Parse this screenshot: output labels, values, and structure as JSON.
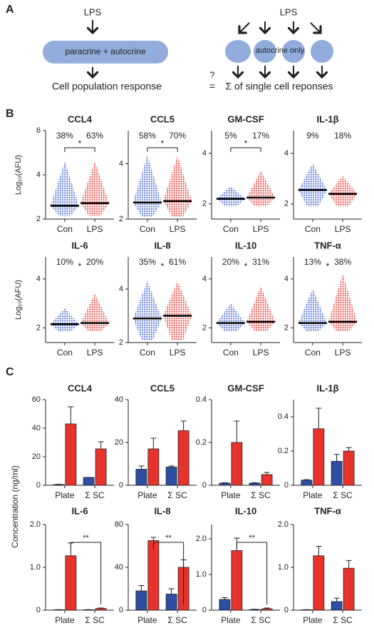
{
  "panel_labels": [
    "A",
    "B",
    "C"
  ],
  "diagram": {
    "left_stimulus": "LPS",
    "left_box": "paracrine + autocrine",
    "left_result": "Cell population response",
    "question": "?",
    "equals": "=",
    "right_stimulus": "LPS",
    "right_box": "autocrine only",
    "right_result": "Σ of single cell reponses"
  },
  "c_ylabel": "Concentration (ng/ml)",
  "chart_data": [
    {
      "type": "swarm",
      "title": "CCL4",
      "ylabel": "Log₁₀(AFU)",
      "categories": [
        "Con",
        "LPS"
      ],
      "colors": [
        "#3b5fcf",
        "#e8332c"
      ],
      "medians": [
        2.6,
        2.72
      ],
      "ranges": [
        [
          2.15,
          4.6
        ],
        [
          2.15,
          4.6
        ]
      ],
      "percents": [
        38,
        63
      ],
      "percent_labels": [
        "38%",
        "63%"
      ],
      "annotation": "*",
      "bracket": true,
      "ylim": [
        2,
        6
      ],
      "yticks": [
        2,
        4,
        6
      ]
    },
    {
      "type": "swarm",
      "title": "CCL5",
      "categories": [
        "Con",
        "LPS"
      ],
      "colors": [
        "#3b5fcf",
        "#e8332c"
      ],
      "medians": [
        2.6,
        2.65
      ],
      "ranges": [
        [
          2.1,
          4.3
        ],
        [
          2.1,
          4.3
        ]
      ],
      "percents": [
        58,
        70
      ],
      "percent_labels": [
        "58%",
        "70%"
      ],
      "annotation": "*",
      "bracket": true,
      "ylim": [
        2,
        5.2
      ],
      "yticks": [
        2,
        4
      ]
    },
    {
      "type": "swarm",
      "title": "GM-CSF",
      "categories": [
        "Con",
        "LPS"
      ],
      "colors": [
        "#3b5fcf",
        "#e8332c"
      ],
      "medians": [
        2.2,
        2.25
      ],
      "ranges": [
        [
          1.9,
          2.7
        ],
        [
          1.9,
          3.3
        ]
      ],
      "percents": [
        5,
        17
      ],
      "percent_labels": [
        "5%",
        "17%"
      ],
      "annotation": "*",
      "bracket": true,
      "ylim": [
        1.4,
        4.9
      ],
      "yticks": [
        2,
        4
      ]
    },
    {
      "type": "swarm",
      "title": "IL-1β",
      "categories": [
        "Con",
        "LPS"
      ],
      "colors": [
        "#3b5fcf",
        "#e8332c"
      ],
      "medians": [
        2.55,
        2.4
      ],
      "ranges": [
        [
          1.9,
          3.6
        ],
        [
          1.9,
          3.1
        ]
      ],
      "percents": [
        9,
        18
      ],
      "percent_labels": [
        "9%",
        "18%"
      ],
      "bracket": false,
      "ylim": [
        1.4,
        4.9
      ],
      "yticks": [
        2,
        4
      ]
    },
    {
      "type": "swarm",
      "title": "IL-6",
      "ylabel": "Log₁₀(AFU)",
      "categories": [
        "Con",
        "LPS"
      ],
      "colors": [
        "#3b5fcf",
        "#e8332c"
      ],
      "medians": [
        2.15,
        2.2
      ],
      "ranges": [
        [
          1.85,
          2.8
        ],
        [
          1.85,
          3.4
        ]
      ],
      "percents": [
        10,
        20
      ],
      "percent_labels": [
        "10%",
        "20%"
      ],
      "annotation": "*",
      "bracket": false,
      "ylim": [
        1.4,
        4.9
      ],
      "yticks": [
        2,
        4
      ]
    },
    {
      "type": "swarm",
      "title": "IL-8",
      "categories": [
        "Con",
        "LPS"
      ],
      "colors": [
        "#3b5fcf",
        "#e8332c"
      ],
      "medians": [
        2.9,
        3.0
      ],
      "ranges": [
        [
          2.1,
          4.3
        ],
        [
          2.1,
          4.3
        ]
      ],
      "percents": [
        35,
        61
      ],
      "percent_labels": [
        "35%",
        "61%"
      ],
      "annotation": "*",
      "bracket": false,
      "ylim": [
        2,
        5.2
      ],
      "yticks": [
        2,
        4
      ]
    },
    {
      "type": "swarm",
      "title": "IL-10",
      "categories": [
        "Con",
        "LPS"
      ],
      "colors": [
        "#3b5fcf",
        "#e8332c"
      ],
      "medians": [
        2.2,
        2.25
      ],
      "ranges": [
        [
          1.85,
          3.0
        ],
        [
          1.85,
          3.7
        ]
      ],
      "percents": [
        20,
        31
      ],
      "percent_labels": [
        "20%",
        "31%"
      ],
      "annotation": "*",
      "bracket": false,
      "ylim": [
        1.4,
        4.9
      ],
      "yticks": [
        2,
        4
      ]
    },
    {
      "type": "swarm",
      "title": "TNF-α",
      "categories": [
        "Con",
        "LPS"
      ],
      "colors": [
        "#3b5fcf",
        "#e8332c"
      ],
      "medians": [
        2.2,
        2.25
      ],
      "ranges": [
        [
          1.85,
          3.6
        ],
        [
          1.85,
          4.2
        ]
      ],
      "percents": [
        13,
        38
      ],
      "percent_labels": [
        "13%",
        "38%"
      ],
      "annotation": "*",
      "bracket": false,
      "ylim": [
        1.4,
        4.9
      ],
      "yticks": [
        2,
        4
      ]
    },
    {
      "type": "bar",
      "title": "CCL4",
      "categories": [
        "Plate",
        "Σ SC"
      ],
      "series": [
        {
          "color": "#2d4ea3",
          "values": [
            0.5,
            5.5
          ],
          "errors": [
            0.2,
            0
          ]
        },
        {
          "color": "#e8332c",
          "values": [
            43,
            25.5
          ],
          "errors": [
            12,
            5
          ]
        }
      ],
      "ylim": [
        0,
        60
      ],
      "yticks": [
        0,
        20,
        40,
        60
      ]
    },
    {
      "type": "bar",
      "title": "CCL5",
      "categories": [
        "Plate",
        "Σ SC"
      ],
      "series": [
        {
          "color": "#2d4ea3",
          "values": [
            7.5,
            8.5
          ],
          "errors": [
            1.5,
            0.5
          ]
        },
        {
          "color": "#e8332c",
          "values": [
            17,
            25.5
          ],
          "errors": [
            5,
            4.5
          ]
        }
      ],
      "ylim": [
        0,
        40
      ],
      "yticks": [
        0,
        20,
        40
      ]
    },
    {
      "type": "bar",
      "title": "GM-CSF",
      "categories": [
        "Plate",
        "Σ SC"
      ],
      "series": [
        {
          "color": "#2d4ea3",
          "values": [
            0.01,
            0.01
          ],
          "errors": [
            0.002,
            0.002
          ]
        },
        {
          "color": "#e8332c",
          "values": [
            0.2,
            0.05
          ],
          "errors": [
            0.1,
            0.01
          ]
        }
      ],
      "ylim": [
        0,
        0.4
      ],
      "yticks": [
        0,
        0.2,
        0.4
      ]
    },
    {
      "type": "bar",
      "title": "IL-1β",
      "categories": [
        "Plate",
        "Σ SC"
      ],
      "series": [
        {
          "color": "#2d4ea3",
          "values": [
            0.03,
            0.14
          ],
          "errors": [
            0.003,
            0.04
          ]
        },
        {
          "color": "#e8332c",
          "values": [
            0.33,
            0.2
          ],
          "errors": [
            0.12,
            0.02
          ]
        }
      ],
      "ylim": [
        0,
        0.5
      ],
      "yticks": [
        0,
        0.2,
        0.4
      ]
    },
    {
      "type": "bar",
      "title": "IL-6",
      "categories": [
        "Plate",
        "Σ SC"
      ],
      "series": [
        {
          "color": "#2d4ea3",
          "values": [
            0.01,
            0.01
          ],
          "errors": [
            0.002,
            0.002
          ]
        },
        {
          "color": "#e8332c",
          "values": [
            1.27,
            0.04
          ],
          "errors": [
            0.3,
            0.01
          ]
        }
      ],
      "annotation": "**",
      "bracket": true,
      "ylim": [
        0,
        2
      ],
      "yticks": [
        0,
        {
          "value": 1,
          "label": "1.0"
        },
        {
          "value": 2,
          "label": "2.0"
        }
      ]
    },
    {
      "type": "bar",
      "title": "IL-8",
      "categories": [
        "Plate",
        "Σ SC"
      ],
      "series": [
        {
          "color": "#2d4ea3",
          "values": [
            18,
            15
          ],
          "errors": [
            5,
            5
          ]
        },
        {
          "color": "#e8332c",
          "values": [
            65,
            40
          ],
          "errors": [
            3,
            7
          ]
        }
      ],
      "annotation": "**",
      "bracket": true,
      "ylim": [
        0,
        80
      ],
      "yticks": [
        0,
        40,
        80
      ]
    },
    {
      "type": "bar",
      "title": "IL-10",
      "categories": [
        "Plate",
        "Σ SC"
      ],
      "series": [
        {
          "color": "#2d4ea3",
          "values": [
            0.3,
            0.02
          ],
          "errors": [
            0.05,
            0.005
          ]
        },
        {
          "color": "#e8332c",
          "values": [
            1.67,
            0.04
          ],
          "errors": [
            0.35,
            0.02
          ]
        }
      ],
      "annotation": "**",
      "bracket": true,
      "ylim": [
        0,
        2.4
      ],
      "yticks": [
        0,
        {
          "value": 1,
          "label": "1.0"
        },
        {
          "value": 2,
          "label": "2.0"
        }
      ]
    },
    {
      "type": "bar",
      "title": "TNF-α",
      "categories": [
        "Plate",
        "Σ SC"
      ],
      "series": [
        {
          "color": "#2d4ea3",
          "values": [
            0.01,
            0.2
          ],
          "errors": [
            0.002,
            0.08
          ]
        },
        {
          "color": "#e8332c",
          "values": [
            1.27,
            0.98
          ],
          "errors": [
            0.22,
            0.18
          ]
        }
      ],
      "ylim": [
        0,
        2
      ],
      "yticks": [
        0,
        {
          "value": 1,
          "label": "1.0"
        },
        {
          "value": 2,
          "label": "2.0"
        }
      ]
    }
  ]
}
